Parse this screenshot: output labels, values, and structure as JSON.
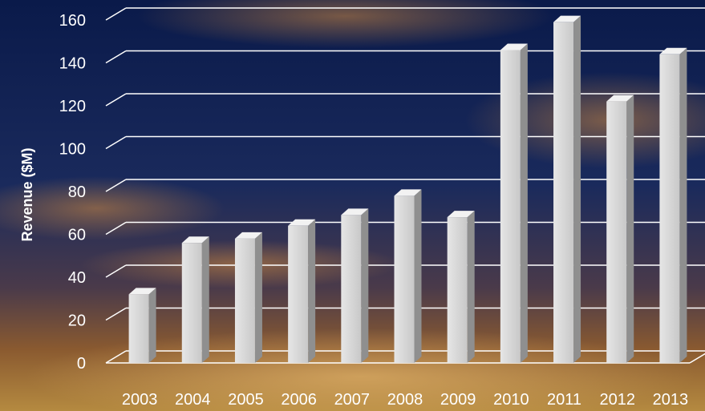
{
  "chart_data": {
    "type": "bar",
    "title": "",
    "xlabel": "",
    "ylabel": "Revenue ($M)",
    "categories": [
      "2003",
      "2004",
      "2005",
      "2006",
      "2007",
      "2008",
      "2009",
      "2010",
      "2011",
      "2012",
      "2013"
    ],
    "values": [
      32,
      56,
      58,
      64,
      69,
      78,
      68,
      146,
      159,
      122,
      144
    ],
    "ylim": [
      0,
      160
    ],
    "yticks": [
      0,
      20,
      40,
      60,
      80,
      100,
      120,
      140,
      160
    ],
    "grid": true,
    "legend": "none",
    "style": "3d-columns",
    "colors": {
      "bar_front": "#d9d9d9",
      "bar_side": "#8f8f8f",
      "bar_top": "#f2f2f2",
      "grid": "#ffffff",
      "text": "#ffffff"
    }
  }
}
